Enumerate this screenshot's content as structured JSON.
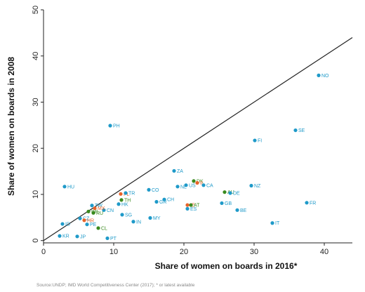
{
  "chart_data": {
    "type": "scatter",
    "xlabel": "Share of women on boards in 2016*",
    "ylabel": "Share of women on boards in 2008",
    "xlim": [
      0,
      44
    ],
    "ylim": [
      -0.5,
      50
    ],
    "x_ticks": [
      0,
      10,
      20,
      30,
      40
    ],
    "y_ticks": [
      0,
      10,
      20,
      30,
      40,
      50
    ],
    "grid": false,
    "reference_line": {
      "from": [
        0,
        0
      ],
      "to": [
        44,
        44
      ]
    },
    "colors": {
      "blue": "#1f9ac9",
      "green": "#3a8a1e",
      "orange": "#e8642a",
      "line": "#222222"
    },
    "points": [
      {
        "label": "NO",
        "x": 39.2,
        "y": 35.8,
        "color": "blue"
      },
      {
        "label": "SE",
        "x": 35.9,
        "y": 23.9,
        "color": "blue"
      },
      {
        "label": "FI",
        "x": 30.1,
        "y": 21.7,
        "color": "blue"
      },
      {
        "label": "PH",
        "x": 9.5,
        "y": 24.9,
        "color": "blue"
      },
      {
        "label": "ZA",
        "x": 18.6,
        "y": 15.1,
        "color": "blue"
      },
      {
        "label": "DK",
        "x": 21.4,
        "y": 12.9,
        "color": "green"
      },
      {
        "label": "IL",
        "x": 21.9,
        "y": 12.5,
        "color": "orange"
      },
      {
        "label": "CA",
        "x": 22.8,
        "y": 12.0,
        "color": "blue"
      },
      {
        "label": "US",
        "x": 20.3,
        "y": 12.0,
        "color": "blue"
      },
      {
        "label": "NL",
        "x": 19.1,
        "y": 11.7,
        "color": "blue"
      },
      {
        "label": "NZ",
        "x": 29.6,
        "y": 11.9,
        "color": "blue"
      },
      {
        "label": "AU",
        "x": 25.8,
        "y": 10.5,
        "color": "green"
      },
      {
        "label": "DE",
        "x": 26.6,
        "y": 10.3,
        "color": "blue"
      },
      {
        "label": "CO",
        "x": 15.0,
        "y": 11.0,
        "color": "blue"
      },
      {
        "label": "HU",
        "x": 3.0,
        "y": 11.7,
        "color": "blue"
      },
      {
        "label": "PL",
        "x": 11.0,
        "y": 10.1,
        "color": "orange"
      },
      {
        "label": "TR",
        "x": 11.7,
        "y": 10.3,
        "color": "blue"
      },
      {
        "label": "TH",
        "x": 11.1,
        "y": 8.8,
        "color": "green"
      },
      {
        "label": "GR",
        "x": 16.1,
        "y": 8.4,
        "color": "blue"
      },
      {
        "label": "CH",
        "x": 17.2,
        "y": 8.9,
        "color": "blue"
      },
      {
        "label": "GB",
        "x": 25.4,
        "y": 8.1,
        "color": "blue"
      },
      {
        "label": "FR",
        "x": 37.5,
        "y": 8.2,
        "color": "blue"
      },
      {
        "label": "IE",
        "x": 20.5,
        "y": 7.7,
        "color": "orange"
      },
      {
        "label": "AT",
        "x": 21.0,
        "y": 7.7,
        "color": "green"
      },
      {
        "label": "ES",
        "x": 20.5,
        "y": 6.9,
        "color": "blue"
      },
      {
        "label": "BE",
        "x": 27.6,
        "y": 6.6,
        "color": "blue"
      },
      {
        "label": "TW",
        "x": 6.9,
        "y": 7.6,
        "color": "blue"
      },
      {
        "label": "HK",
        "x": 10.7,
        "y": 7.9,
        "color": "blue"
      },
      {
        "label": "CN",
        "x": 8.6,
        "y": 6.6,
        "color": "blue"
      },
      {
        "label": "MX",
        "x": 7.3,
        "y": 7.0,
        "color": "orange"
      },
      {
        "label": "RU",
        "x": 7.1,
        "y": 6.0,
        "color": "green"
      },
      {
        "label": "BR",
        "x": 6.4,
        "y": 6.3,
        "color": "green"
      },
      {
        "label": "SG",
        "x": 11.2,
        "y": 5.6,
        "color": "blue"
      },
      {
        "label": "CZ",
        "x": 5.2,
        "y": 4.8,
        "color": "blue"
      },
      {
        "label": "HR",
        "x": 5.8,
        "y": 4.4,
        "color": "orange"
      },
      {
        "label": "PE",
        "x": 6.2,
        "y": 3.5,
        "color": "blue"
      },
      {
        "label": "MY",
        "x": 15.2,
        "y": 4.9,
        "color": "blue"
      },
      {
        "label": "IN",
        "x": 12.8,
        "y": 4.1,
        "color": "blue"
      },
      {
        "label": "CL",
        "x": 7.8,
        "y": 2.7,
        "color": "green"
      },
      {
        "label": "ID",
        "x": 2.7,
        "y": 3.6,
        "color": "blue"
      },
      {
        "label": "IT",
        "x": 32.6,
        "y": 3.8,
        "color": "blue"
      },
      {
        "label": "KR",
        "x": 2.3,
        "y": 1.0,
        "color": "blue"
      },
      {
        "label": "JP",
        "x": 4.8,
        "y": 0.9,
        "color": "blue"
      },
      {
        "label": "PT",
        "x": 9.1,
        "y": 0.5,
        "color": "blue"
      }
    ]
  },
  "source_note": "Source:UNDP; IMD World Competitiveness Center (2017); * or latest available"
}
